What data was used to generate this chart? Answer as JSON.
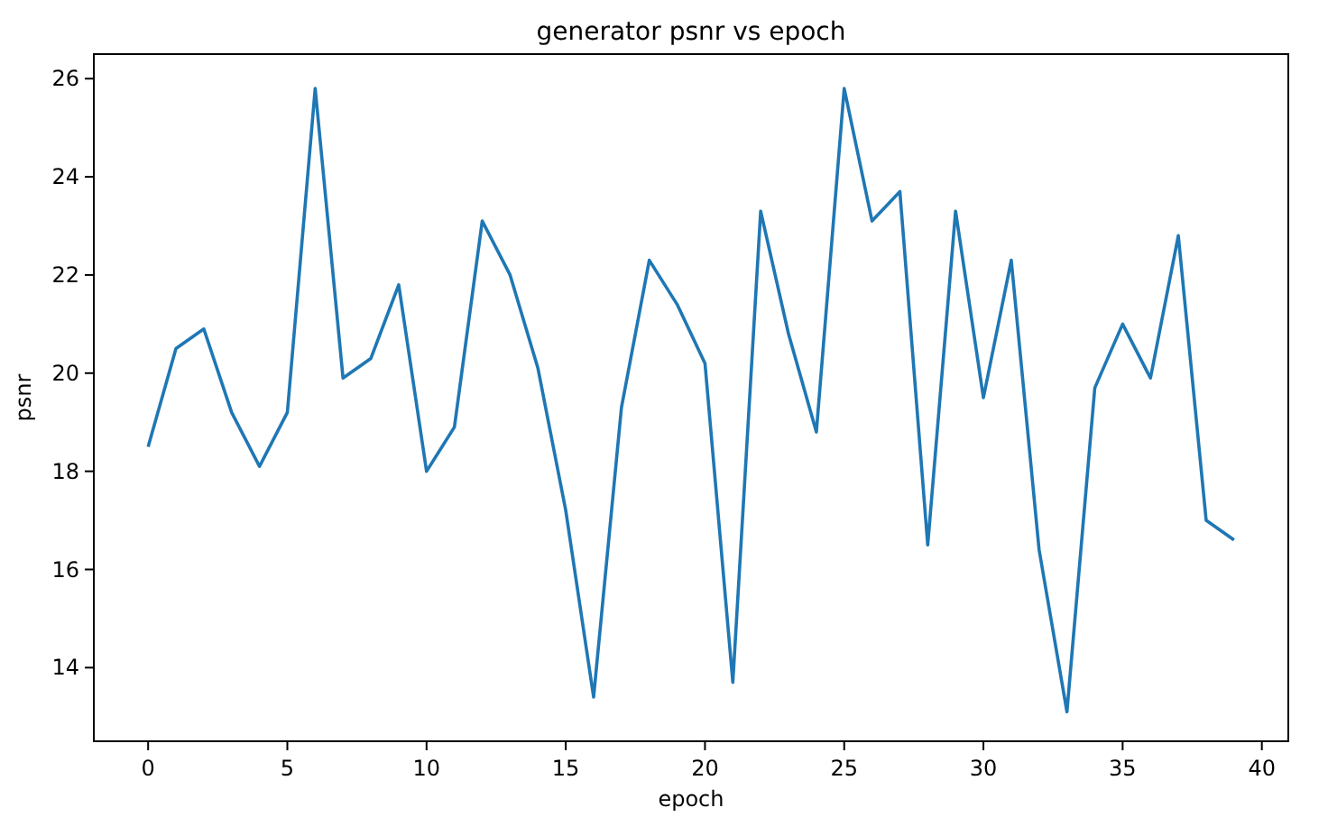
{
  "chart_data": {
    "type": "line",
    "title": "generator psnr vs epoch",
    "xlabel": "epoch",
    "ylabel": "psnr",
    "x": [
      0,
      1,
      2,
      3,
      4,
      5,
      6,
      7,
      8,
      9,
      10,
      11,
      12,
      13,
      14,
      15,
      16,
      17,
      18,
      19,
      20,
      21,
      22,
      23,
      24,
      25,
      26,
      27,
      28,
      29,
      30,
      31,
      32,
      33,
      34,
      35,
      36,
      37,
      38,
      39
    ],
    "series": [
      {
        "color": "#1f77b4",
        "values": [
          18.5,
          20.5,
          20.9,
          19.2,
          18.1,
          19.2,
          25.8,
          19.9,
          20.3,
          21.8,
          18.0,
          18.9,
          23.1,
          22.0,
          20.1,
          17.2,
          13.4,
          19.3,
          22.3,
          21.4,
          20.2,
          13.7,
          23.3,
          20.8,
          18.8,
          25.8,
          23.1,
          23.7,
          16.5,
          23.3,
          19.5,
          22.3,
          16.4,
          13.1,
          19.7,
          21.0,
          19.9,
          22.8,
          17.0,
          16.6
        ]
      }
    ],
    "xlim": [
      -1.95,
      40.95
    ],
    "xticks": [
      0,
      5,
      10,
      15,
      20,
      25,
      30,
      35,
      40
    ],
    "ylim": [
      12.5,
      26.5
    ],
    "yticks": [
      14,
      16,
      18,
      20,
      22,
      24,
      26
    ],
    "grid": false,
    "line_style": "solid",
    "marker": "none"
  }
}
